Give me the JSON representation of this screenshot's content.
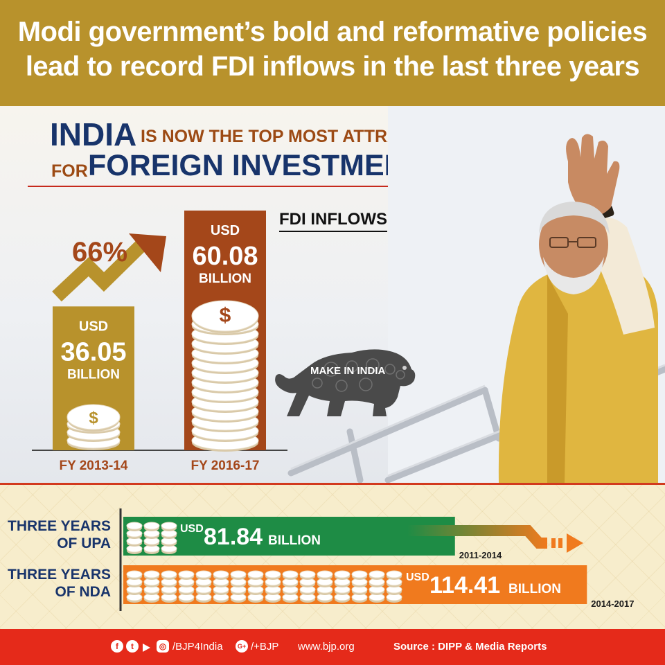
{
  "header": {
    "line1": "Modi government’s bold and reformative policies",
    "line2": "lead to record FDI inflows in the last three years"
  },
  "headline": {
    "word_india": "INDIA",
    "line1_rest": "IS NOW THE TOP MOST ATTRACTIVE DESTINATION",
    "word_for": "FOR",
    "word_foreign_investment": "FOREIGN INVESTMENT"
  },
  "logo": {
    "make_in_india": "MAKE IN INDIA"
  },
  "chart_data": [
    {
      "type": "bar",
      "title": "FDI INFLOWS",
      "categories": [
        "FY 2013-14",
        "FY 2016-17"
      ],
      "values": [
        36.05,
        60.08
      ],
      "value_labels": [
        {
          "top": "USD",
          "value": "36.05",
          "bottom": "BILLION"
        },
        {
          "top": "USD",
          "value": "60.08",
          "bottom": "BILLION"
        }
      ],
      "colors": [
        "#b8922c",
        "#a4471a"
      ],
      "growth_label": "66%",
      "unit": "USD BILLION"
    },
    {
      "type": "bar",
      "orientation": "horizontal",
      "categories": [
        "THREE YEARS OF UPA",
        "THREE YEARS OF NDA"
      ],
      "category_lines": [
        [
          "THREE YEARS",
          "OF UPA"
        ],
        [
          "THREE YEARS",
          "OF NDA"
        ]
      ],
      "values": [
        81.84,
        114.41
      ],
      "value_labels": [
        {
          "prefix": "USD",
          "value": "81.84",
          "suffix": "BILLION"
        },
        {
          "prefix": "USD",
          "value": "114.41",
          "suffix": "BILLION"
        }
      ],
      "periods": [
        "2011-2014",
        "2014-2017"
      ],
      "colors": [
        "#1e8c45",
        "#f07a1e"
      ],
      "unit": "USD BILLION"
    }
  ],
  "footer": {
    "handle": "/BJP4India",
    "gplus_handle": "/+BJP",
    "website": "www.bjp.org",
    "source": "Source : DIPP & Media Reports"
  }
}
